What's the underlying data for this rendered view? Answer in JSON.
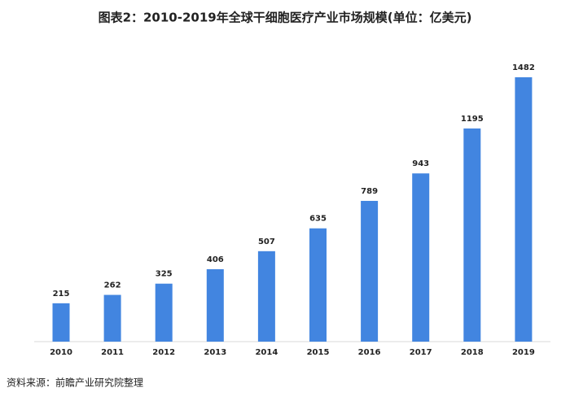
{
  "chart_data": {
    "type": "bar",
    "title": "图表2：2010-2019年全球干细胞医疗产业市场规模(单位：亿美元)",
    "categories": [
      "2010",
      "2011",
      "2012",
      "2013",
      "2014",
      "2015",
      "2016",
      "2017",
      "2018",
      "2019"
    ],
    "values": [
      215,
      262,
      325,
      406,
      507,
      635,
      789,
      943,
      1195,
      1482
    ],
    "color": "#4285e0",
    "source": "资料来源：前瞻产业研究院整理"
  }
}
